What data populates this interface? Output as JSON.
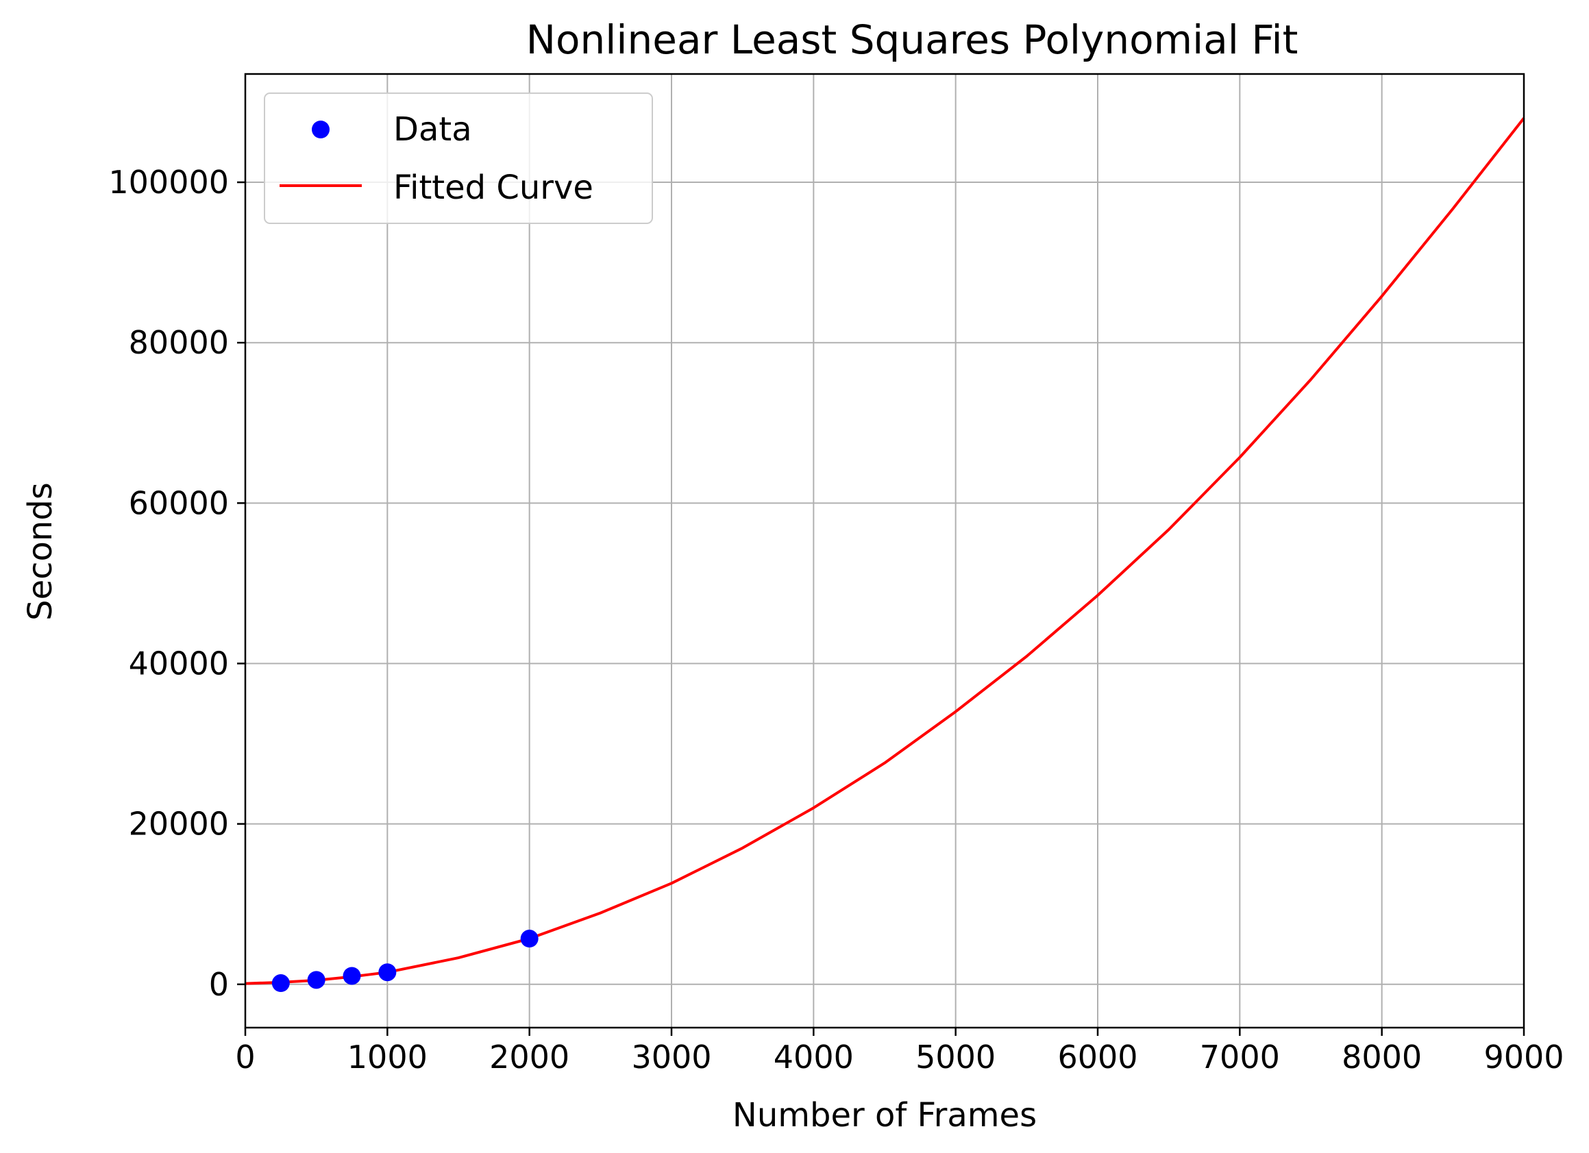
{
  "chart_data": {
    "type": "scatter",
    "title": "Nonlinear Least Squares Polynomial Fit",
    "xlabel": "Number of Frames",
    "ylabel": "Seconds",
    "xlim": [
      0,
      9000
    ],
    "ylim": [
      -5400,
      113500
    ],
    "xticks": [
      0,
      1000,
      2000,
      3000,
      4000,
      5000,
      6000,
      7000,
      8000,
      9000
    ],
    "yticks": [
      0,
      20000,
      40000,
      60000,
      80000,
      100000
    ],
    "grid": true,
    "legend_position": "top-left",
    "series": [
      {
        "name": "Data",
        "kind": "scatter",
        "color": "#0000ff",
        "points": [
          {
            "x": 250,
            "y": 150
          },
          {
            "x": 500,
            "y": 550
          },
          {
            "x": 750,
            "y": 1050
          },
          {
            "x": 1000,
            "y": 1500
          },
          {
            "x": 2000,
            "y": 5700
          }
        ]
      },
      {
        "name": "Fitted Curve",
        "kind": "line",
        "color": "#ff0000",
        "points": [
          {
            "x": 0,
            "y": 100
          },
          {
            "x": 250,
            "y": 250
          },
          {
            "x": 500,
            "y": 500
          },
          {
            "x": 750,
            "y": 950
          },
          {
            "x": 1000,
            "y": 1500
          },
          {
            "x": 1500,
            "y": 3300
          },
          {
            "x": 2000,
            "y": 5700
          },
          {
            "x": 2500,
            "y": 8900
          },
          {
            "x": 3000,
            "y": 12600
          },
          {
            "x": 3500,
            "y": 17000
          },
          {
            "x": 4000,
            "y": 22000
          },
          {
            "x": 4500,
            "y": 27600
          },
          {
            "x": 5000,
            "y": 34000
          },
          {
            "x": 5500,
            "y": 40900
          },
          {
            "x": 6000,
            "y": 48500
          },
          {
            "x": 6500,
            "y": 56700
          },
          {
            "x": 7000,
            "y": 65700
          },
          {
            "x": 7500,
            "y": 75400
          },
          {
            "x": 8000,
            "y": 85800
          },
          {
            "x": 8500,
            "y": 96700
          },
          {
            "x": 9000,
            "y": 108000
          }
        ]
      }
    ]
  }
}
